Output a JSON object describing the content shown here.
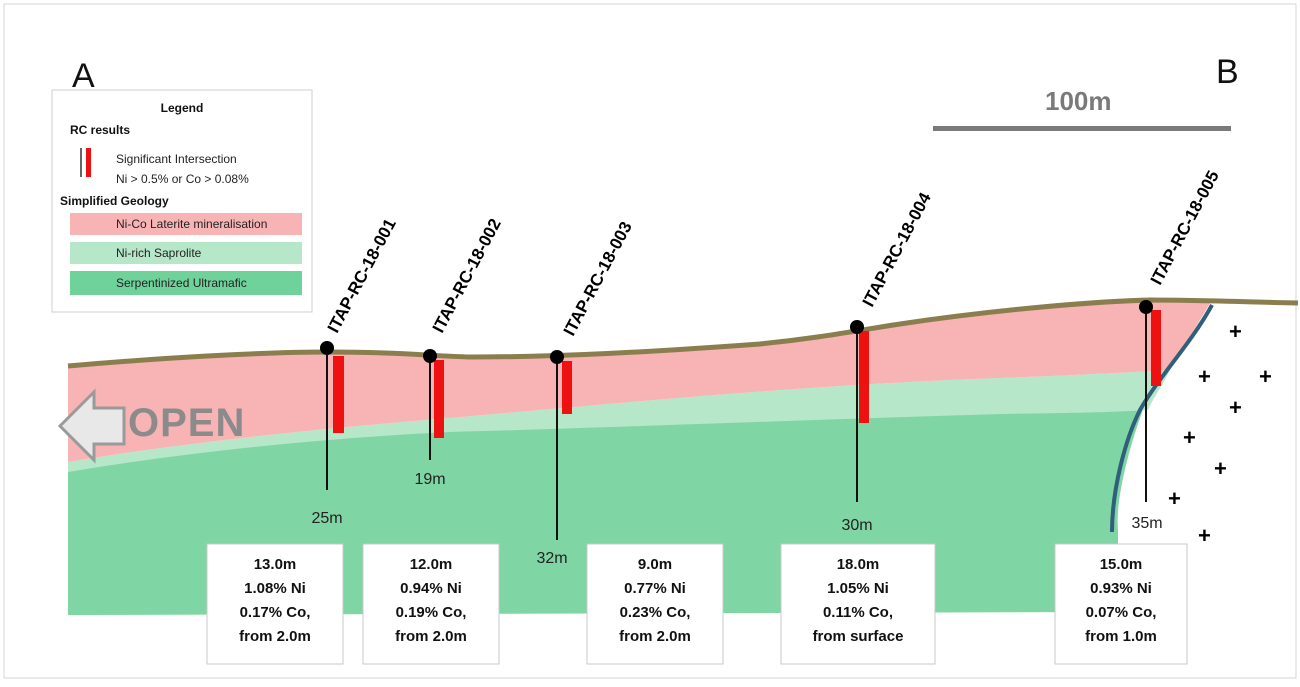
{
  "section": {
    "label_start": "A",
    "label_end": "B",
    "scale_bar": "100m",
    "open_label": "OPEN"
  },
  "legend": {
    "title": "Legend",
    "rc_header": "RC results",
    "intersection_line1": "Significant Intersection",
    "intersection_line2": "Ni > 0.5% or Co > 0.08%",
    "geology_header": "Simplified Geology",
    "items": [
      {
        "label": "Ni-Co Laterite mineralisation",
        "color": "#f8b4b4"
      },
      {
        "label": "Ni-rich Saprolite",
        "color": "#b6e7c9"
      },
      {
        "label": "Serpentinized Ultramafic",
        "color": "#6fd29b"
      }
    ]
  },
  "colors": {
    "laterite": "#f8b4b4",
    "saprolite": "#b6e7c9",
    "ultramafic": "#7fd6a4",
    "surface": "#8b7e4e",
    "intersection": "#ee1111",
    "contact": "#2f5f7a"
  },
  "holes": [
    {
      "name": "ITAP-RC-18-001",
      "depth": "25m",
      "result": [
        "13.0m",
        "1.08% Ni",
        "0.17% Co,",
        "from 2.0m"
      ]
    },
    {
      "name": "ITAP-RC-18-002",
      "depth": "19m",
      "result": [
        "12.0m",
        "0.94% Ni",
        "0.19% Co,",
        "from 2.0m"
      ]
    },
    {
      "name": "ITAP-RC-18-003",
      "depth": "32m",
      "result": [
        "9.0m",
        "0.77% Ni",
        "0.23% Co,",
        "from 2.0m"
      ]
    },
    {
      "name": "ITAP-RC-18-004",
      "depth": "30m",
      "result": [
        "18.0m",
        "1.05% Ni",
        "0.11% Co,",
        "from surface"
      ]
    },
    {
      "name": "ITAP-RC-18-005",
      "depth": "35m",
      "result": [
        "15.0m",
        "0.93% Ni",
        "0.07% Co,",
        "from 1.0m"
      ]
    }
  ]
}
